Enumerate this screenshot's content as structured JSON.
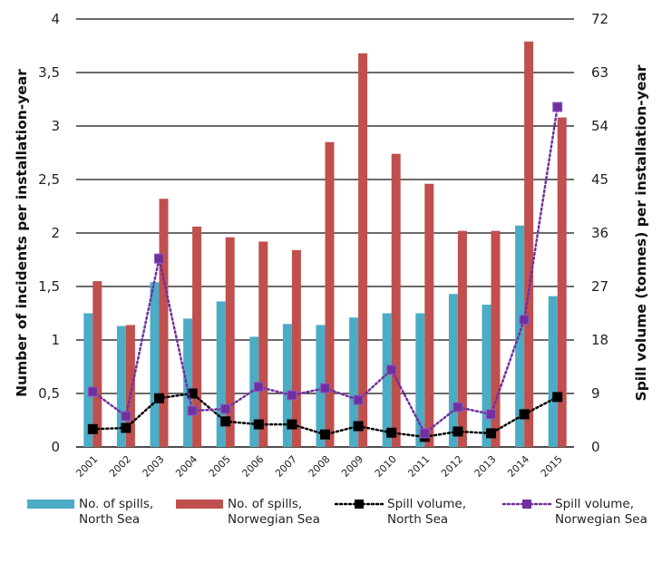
{
  "chart_data": {
    "type": "bar",
    "title": "",
    "categories": [
      "2001",
      "2002",
      "2003",
      "2004",
      "2005",
      "2006",
      "2007",
      "2008",
      "2009",
      "2010",
      "2011",
      "2012",
      "2013",
      "2014",
      "2015"
    ],
    "y_left": {
      "label": "Number of incidents per installation-year",
      "ylim": [
        0,
        4
      ],
      "ticks": [
        "0",
        "0,5",
        "1",
        "1,5",
        "2",
        "2,5",
        "3",
        "3,5",
        "4"
      ],
      "tick_values": [
        0,
        0.5,
        1,
        1.5,
        2,
        2.5,
        3,
        3.5,
        4
      ]
    },
    "y_right": {
      "label": "Spill volume (tonnes) per installation-year",
      "ylim": [
        0,
        72
      ],
      "ticks": [
        "0",
        "9",
        "18",
        "27",
        "36",
        "45",
        "54",
        "63",
        "72"
      ],
      "tick_values": [
        0,
        9,
        18,
        27,
        36,
        45,
        54,
        63,
        72
      ]
    },
    "grid": true,
    "legend_position": "bottom",
    "series": [
      {
        "name": "No. of spills, North Sea",
        "legend_lines": [
          "No. of spills,",
          "North Sea"
        ],
        "type": "bar",
        "axis": "left",
        "color": "#4bacc6",
        "values": [
          1.25,
          1.13,
          1.54,
          1.2,
          1.36,
          1.03,
          1.15,
          1.14,
          1.21,
          1.25,
          1.25,
          1.43,
          1.33,
          2.07,
          1.41
        ]
      },
      {
        "name": "No. of spills, Norwegian Sea",
        "legend_lines": [
          "No. of spills,",
          "Norwegian Sea"
        ],
        "type": "bar",
        "axis": "left",
        "color": "#c0504d",
        "values": [
          1.55,
          1.14,
          2.32,
          2.06,
          1.96,
          1.92,
          1.84,
          2.85,
          3.68,
          2.74,
          2.46,
          2.02,
          2.02,
          3.79,
          3.08
        ]
      },
      {
        "name": "Spill volume, North Sea",
        "legend_lines": [
          "Spill volume,",
          "North Sea"
        ],
        "type": "line",
        "axis": "right",
        "color": "#000000",
        "marker": "square",
        "line_style": "dotted",
        "values": [
          3.0,
          3.2,
          8.2,
          9.0,
          4.3,
          3.8,
          3.8,
          2.1,
          3.5,
          2.4,
          1.7,
          2.6,
          2.3,
          5.5,
          8.4
        ]
      },
      {
        "name": "Spill volume, Norwegian Sea",
        "legend_lines": [
          "Spill volume,",
          "Norwegian Sea"
        ],
        "type": "line",
        "axis": "right",
        "color": "#7030a0",
        "marker": "square",
        "line_style": "dotted",
        "values": [
          9.3,
          5.2,
          31.7,
          6.1,
          6.4,
          10.1,
          8.7,
          9.9,
          7.9,
          13.0,
          2.3,
          6.7,
          5.5,
          21.4,
          57.2
        ]
      }
    ]
  }
}
